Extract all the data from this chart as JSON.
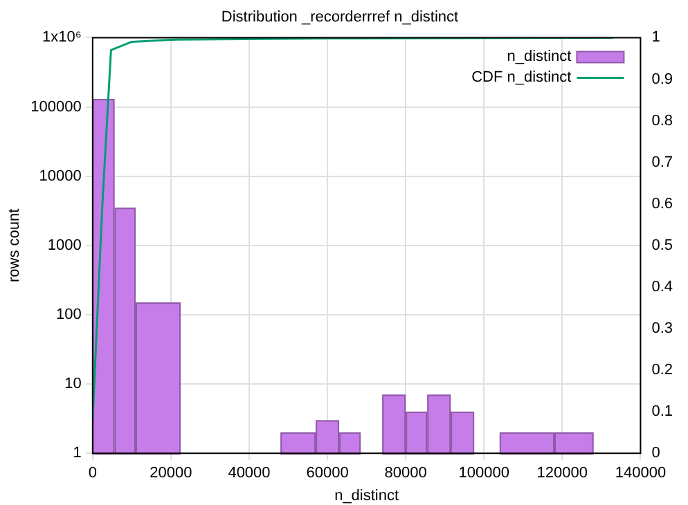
{
  "chart_data": {
    "type": "histogram",
    "title": "Distribution _recorderrref n_distinct",
    "xlabel": "n_distinct",
    "ylabel": "rows count",
    "bins": [
      0,
      5600,
      11000,
      22500,
      48000,
      57000,
      63000,
      68500,
      74000,
      80000,
      85500,
      91500,
      97500,
      104000,
      118000,
      128000
    ],
    "series": [
      {
        "name": "n_distinct",
        "color": "#c77de9",
        "values": [
          130000,
          3500,
          150,
          null,
          2,
          3,
          2,
          null,
          7,
          4,
          7,
          4,
          null,
          2,
          2
        ]
      },
      {
        "name": "CDF n_distinct",
        "type": "line",
        "axis": "y2",
        "color": "#009e73",
        "x": [
          0,
          2500,
          4700,
          10000,
          20000,
          60000,
          133000
        ],
        "values": [
          0.08,
          0.6,
          0.97,
          0.99,
          0.995,
          0.998,
          1
        ]
      }
    ],
    "log": "y",
    "grid": true,
    "legend": "top right",
    "marker": "none",
    "xlim": [
      0,
      140000
    ],
    "xticks": [
      0,
      20000,
      40000,
      60000,
      80000,
      100000,
      120000,
      140000
    ],
    "ylim": [
      1,
      1000000
    ],
    "yticks": [
      1,
      10,
      100,
      1000,
      10000,
      100000,
      {
        "value": 1000000,
        "label": "1x10⁶"
      }
    ],
    "y2lim": [
      0,
      1
    ],
    "y2ticks": [
      0,
      0.1,
      0.2,
      0.3,
      0.4,
      0.5,
      0.6,
      0.7,
      0.8,
      0.9,
      1
    ]
  }
}
